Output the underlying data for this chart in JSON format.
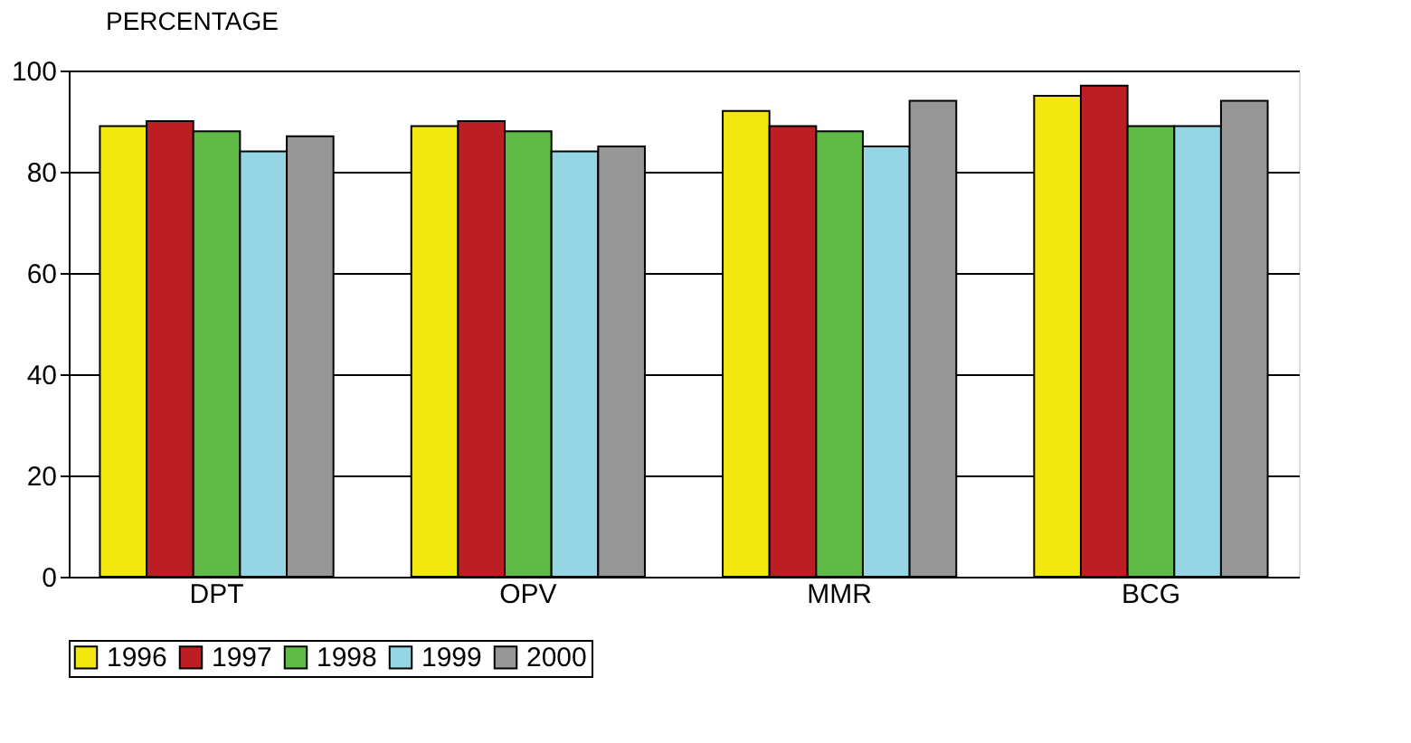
{
  "chart_data": {
    "type": "bar",
    "ylabel": "PERCENTAGE",
    "categories": [
      "DPT",
      "OPV",
      "MMR",
      "BCG"
    ],
    "series": [
      {
        "name": "1996",
        "color": "#f2e70f",
        "values": [
          89,
          89,
          92,
          95
        ]
      },
      {
        "name": "1997",
        "color": "#bb1f24",
        "values": [
          90,
          90,
          89,
          97
        ]
      },
      {
        "name": "1998",
        "color": "#5fba46",
        "values": [
          88,
          88,
          88,
          89
        ]
      },
      {
        "name": "1999",
        "color": "#96d6e4",
        "values": [
          84,
          84,
          85,
          89
        ]
      },
      {
        "name": "2000",
        "color": "#969696",
        "values": [
          87,
          85,
          94,
          94
        ]
      }
    ],
    "ylim": [
      0,
      100
    ],
    "yticks": [
      0,
      20,
      40,
      60,
      80,
      100
    ],
    "grid": "y",
    "legend": "bottom"
  }
}
